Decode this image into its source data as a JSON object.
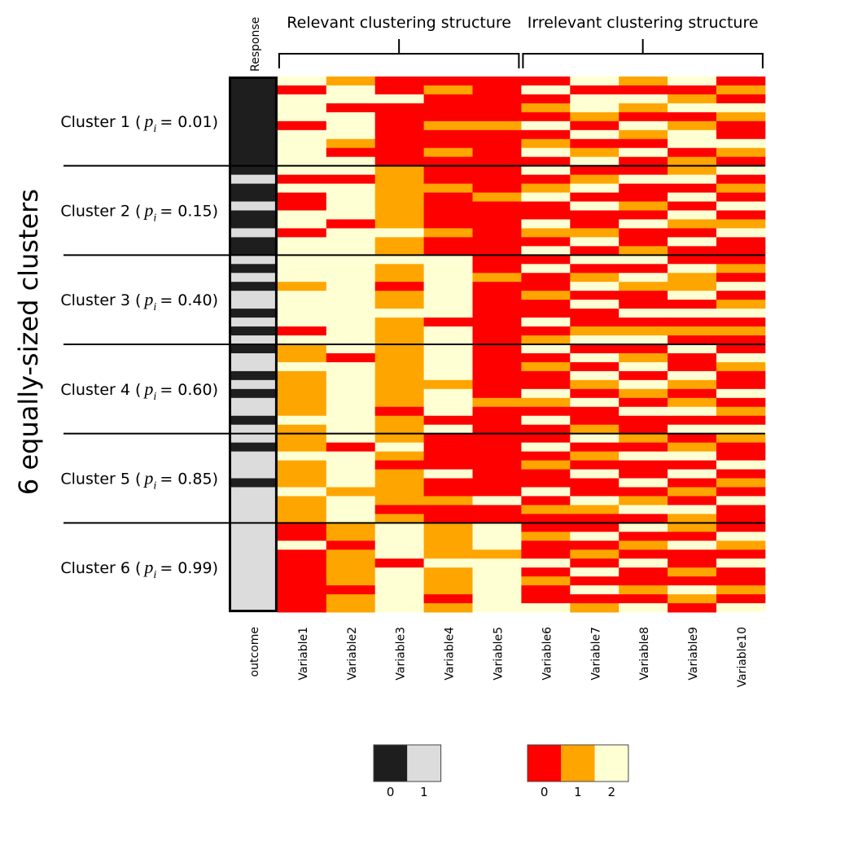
{
  "chart_data": {
    "type": "heatmap",
    "y_label": "6 equally-sized clusters",
    "response_header": "Response",
    "column_groups": [
      {
        "name": "Relevant clustering structure",
        "columns": [
          "Variable1",
          "Variable5"
        ]
      },
      {
        "name": "Irrelevant clustering structure",
        "columns": [
          "Variable6",
          "Variable10"
        ]
      }
    ],
    "cluster_param": {
      "symbol": "p",
      "subscript": "i"
    },
    "clusters": [
      {
        "prefix": "Cluster 1 (",
        "suffix": "= 0.01)"
      },
      {
        "prefix": "Cluster 2 (",
        "suffix": "= 0.15)"
      },
      {
        "prefix": "Cluster 3 (",
        "suffix": "= 0.40)"
      },
      {
        "prefix": "Cluster 4 (",
        "suffix": "= 0.60)"
      },
      {
        "prefix": "Cluster 5 (",
        "suffix": "= 0.85)"
      },
      {
        "prefix": "Cluster 6 (",
        "suffix": "= 0.99)"
      }
    ],
    "response_colors": [
      "#1e1e1e",
      "#dcdcdc"
    ],
    "variable_colors": [
      "#ff0000",
      "#ffa500",
      "#ffffd4"
    ],
    "series": [
      {
        "name": "outcome",
        "scale": "response",
        "values": [
          0,
          0,
          0,
          0,
          0,
          0,
          0,
          0,
          0,
          0,
          0,
          1,
          0,
          0,
          1,
          0,
          0,
          1,
          0,
          0,
          1,
          0,
          1,
          0,
          1,
          1,
          0,
          1,
          0,
          1,
          0,
          1,
          1,
          0,
          1,
          0,
          1,
          1,
          0,
          1,
          1,
          0,
          1,
          1,
          1,
          0,
          1,
          1,
          1,
          1,
          1,
          1,
          1,
          1,
          1,
          1,
          1,
          1,
          1,
          1
        ]
      },
      {
        "name": "Variable1",
        "scale": "variable",
        "values": [
          2,
          0,
          2,
          2,
          2,
          0,
          2,
          2,
          2,
          2,
          2,
          0,
          2,
          0,
          0,
          2,
          2,
          0,
          2,
          2,
          2,
          2,
          2,
          1,
          2,
          2,
          2,
          2,
          0,
          2,
          1,
          1,
          2,
          1,
          1,
          1,
          1,
          1,
          2,
          1,
          1,
          1,
          2,
          1,
          1,
          1,
          2,
          1,
          1,
          1,
          0,
          0,
          2,
          0,
          0,
          0,
          0,
          0,
          0,
          0
        ]
      },
      {
        "name": "Variable2",
        "scale": "variable",
        "values": [
          1,
          2,
          2,
          0,
          2,
          2,
          2,
          1,
          0,
          2,
          2,
          0,
          2,
          2,
          2,
          2,
          0,
          2,
          2,
          2,
          2,
          2,
          2,
          2,
          2,
          2,
          2,
          2,
          2,
          2,
          2,
          0,
          2,
          2,
          2,
          2,
          2,
          2,
          2,
          2,
          2,
          0,
          2,
          2,
          2,
          2,
          1,
          2,
          2,
          2,
          1,
          1,
          0,
          1,
          1,
          1,
          1,
          0,
          1,
          1
        ]
      },
      {
        "name": "Variable3",
        "scale": "variable",
        "values": [
          0,
          0,
          2,
          0,
          0,
          0,
          0,
          0,
          0,
          0,
          1,
          1,
          1,
          1,
          1,
          1,
          1,
          2,
          1,
          1,
          2,
          1,
          1,
          0,
          1,
          1,
          2,
          1,
          1,
          1,
          1,
          1,
          1,
          1,
          1,
          1,
          1,
          0,
          1,
          1,
          1,
          2,
          1,
          0,
          1,
          1,
          1,
          1,
          0,
          1,
          2,
          2,
          2,
          2,
          0,
          2,
          2,
          2,
          2,
          2
        ]
      },
      {
        "name": "Variable4",
        "scale": "variable",
        "values": [
          0,
          1,
          0,
          0,
          0,
          1,
          0,
          0,
          1,
          0,
          0,
          0,
          1,
          0,
          0,
          0,
          0,
          1,
          0,
          0,
          2,
          2,
          2,
          2,
          2,
          2,
          2,
          0,
          2,
          2,
          2,
          2,
          2,
          2,
          1,
          2,
          2,
          2,
          0,
          2,
          0,
          0,
          0,
          0,
          2,
          0,
          0,
          1,
          0,
          0,
          1,
          1,
          1,
          1,
          2,
          1,
          1,
          1,
          0,
          1
        ]
      },
      {
        "name": "Variable5",
        "scale": "variable",
        "values": [
          0,
          0,
          0,
          0,
          0,
          1,
          0,
          0,
          0,
          0,
          0,
          0,
          0,
          1,
          0,
          0,
          0,
          0,
          0,
          0,
          0,
          0,
          1,
          0,
          0,
          0,
          0,
          0,
          0,
          0,
          0,
          0,
          0,
          0,
          0,
          0,
          1,
          0,
          0,
          0,
          0,
          0,
          0,
          0,
          0,
          0,
          0,
          2,
          0,
          0,
          2,
          2,
          2,
          1,
          2,
          2,
          2,
          2,
          2,
          2
        ]
      },
      {
        "name": "Variable6",
        "scale": "variable",
        "values": [
          0,
          2,
          0,
          1,
          0,
          2,
          0,
          1,
          2,
          0,
          2,
          0,
          1,
          2,
          0,
          0,
          2,
          1,
          0,
          2,
          0,
          2,
          0,
          0,
          1,
          0,
          0,
          2,
          0,
          1,
          2,
          0,
          1,
          0,
          0,
          2,
          1,
          0,
          2,
          0,
          0,
          2,
          0,
          1,
          0,
          0,
          2,
          0,
          1,
          0,
          0,
          1,
          0,
          0,
          2,
          0,
          1,
          0,
          0,
          2
        ]
      },
      {
        "name": "Variable7",
        "scale": "variable",
        "values": [
          2,
          0,
          2,
          2,
          1,
          0,
          2,
          0,
          1,
          2,
          0,
          1,
          2,
          0,
          2,
          0,
          0,
          1,
          2,
          0,
          2,
          0,
          1,
          2,
          0,
          2,
          0,
          0,
          1,
          2,
          0,
          2,
          0,
          2,
          1,
          0,
          2,
          0,
          0,
          1,
          2,
          0,
          1,
          0,
          2,
          0,
          0,
          2,
          1,
          0,
          0,
          2,
          0,
          1,
          0,
          2,
          0,
          2,
          0,
          1
        ]
      },
      {
        "name": "Variable8",
        "scale": "variable",
        "values": [
          1,
          0,
          2,
          1,
          0,
          2,
          1,
          0,
          2,
          0,
          0,
          2,
          0,
          0,
          1,
          0,
          2,
          0,
          0,
          1,
          2,
          0,
          2,
          1,
          0,
          0,
          2,
          0,
          1,
          2,
          0,
          1,
          2,
          0,
          2,
          1,
          0,
          2,
          0,
          0,
          1,
          0,
          2,
          0,
          0,
          2,
          0,
          1,
          2,
          0,
          2,
          0,
          1,
          0,
          2,
          0,
          0,
          1,
          0,
          2
        ]
      },
      {
        "name": "Variable9",
        "scale": "variable",
        "values": [
          2,
          0,
          1,
          2,
          0,
          1,
          2,
          2,
          0,
          1,
          1,
          2,
          0,
          2,
          0,
          2,
          1,
          0,
          2,
          0,
          0,
          2,
          1,
          1,
          2,
          0,
          2,
          0,
          1,
          0,
          2,
          0,
          0,
          2,
          1,
          0,
          1,
          2,
          0,
          2,
          0,
          1,
          2,
          0,
          2,
          0,
          1,
          0,
          2,
          1,
          1,
          0,
          2,
          0,
          0,
          1,
          0,
          2,
          1,
          0
        ]
      },
      {
        "name": "Variable10",
        "scale": "variable",
        "values": [
          0,
          1,
          0,
          2,
          1,
          0,
          0,
          2,
          1,
          0,
          2,
          0,
          1,
          0,
          2,
          0,
          1,
          2,
          0,
          0,
          0,
          1,
          0,
          2,
          0,
          1,
          2,
          0,
          1,
          0,
          0,
          2,
          1,
          0,
          0,
          2,
          0,
          1,
          0,
          2,
          1,
          0,
          0,
          2,
          0,
          1,
          0,
          2,
          0,
          0,
          0,
          2,
          1,
          0,
          2,
          0,
          0,
          1,
          0,
          2
        ]
      }
    ],
    "legends": [
      {
        "scale": "response",
        "levels": [
          0,
          1
        ]
      },
      {
        "scale": "variable",
        "levels": [
          0,
          1,
          2
        ]
      }
    ]
  }
}
